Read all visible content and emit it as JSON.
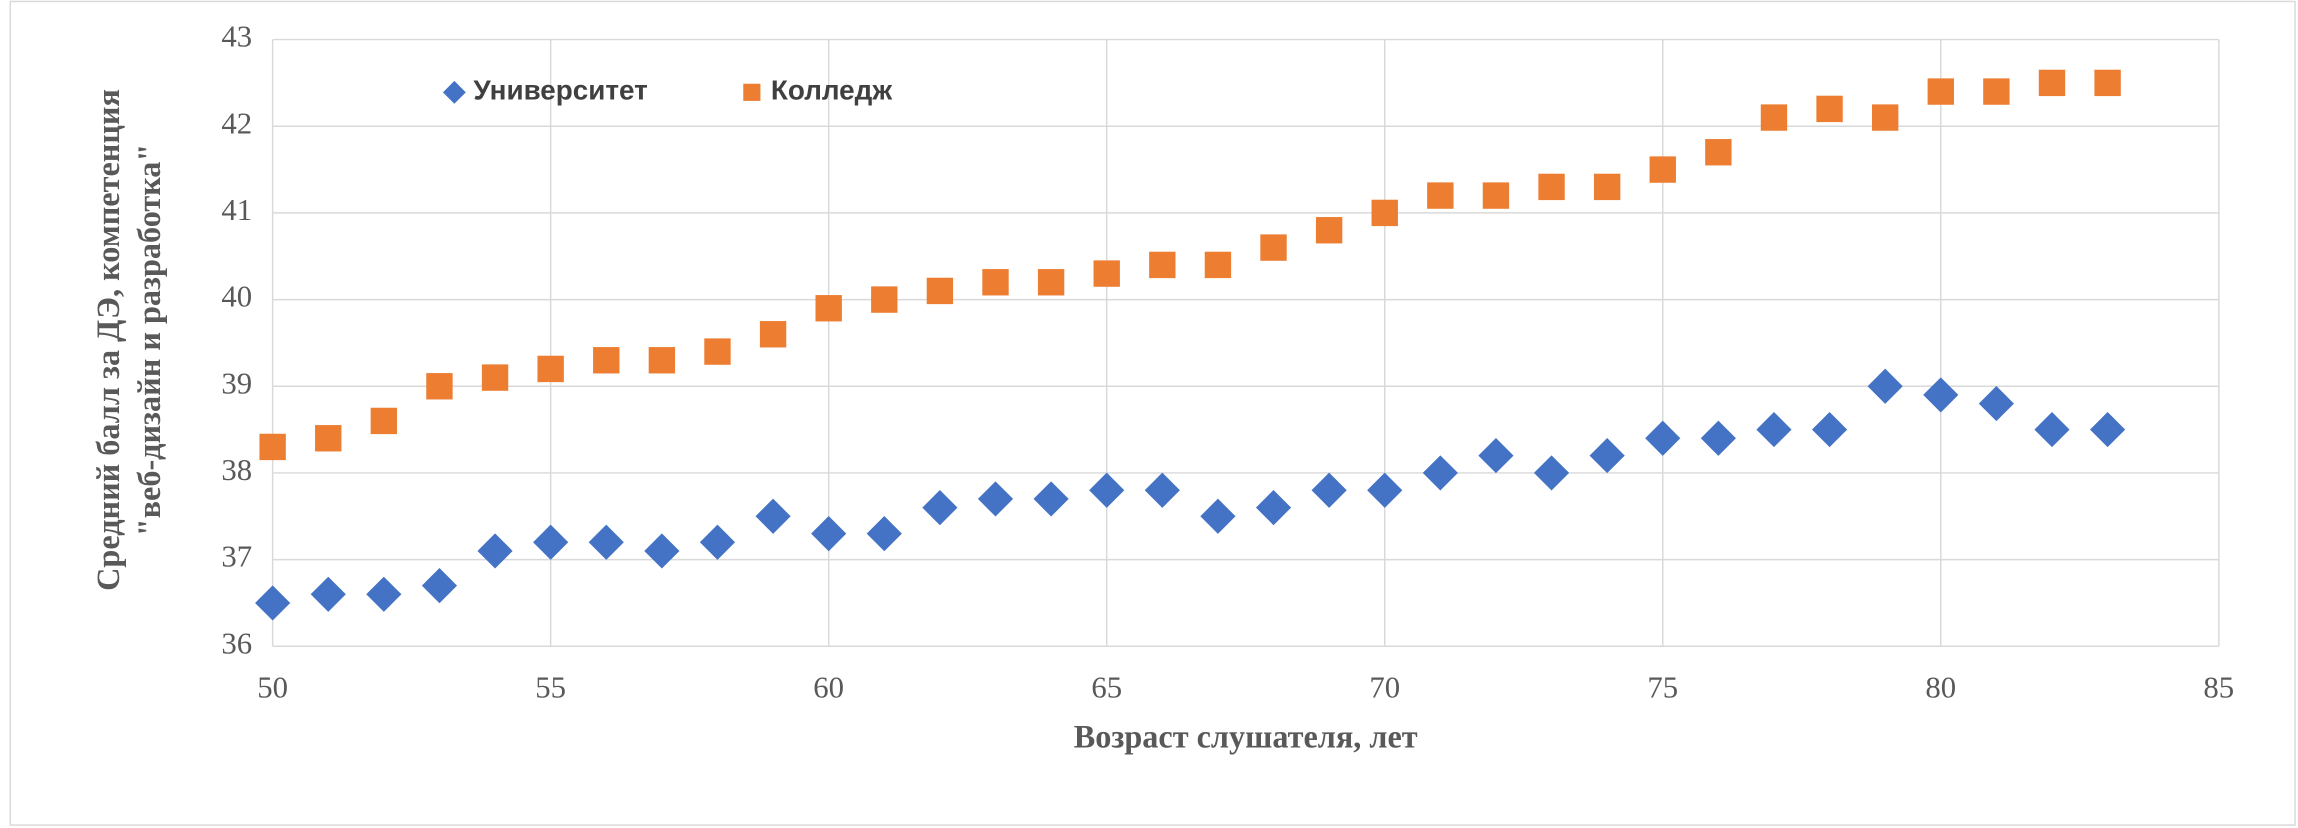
{
  "chart_data": {
    "type": "scatter",
    "x_label": "Возраст слушателя, лет",
    "y_label": [
      "Средний балл за ДЭ, компетенция",
      "\"веб-дизайн и разработка\""
    ],
    "x": [
      50,
      51,
      52,
      53,
      54,
      55,
      56,
      57,
      58,
      59,
      60,
      61,
      62,
      63,
      64,
      65,
      66,
      67,
      68,
      69,
      70,
      71,
      72,
      73,
      74,
      75,
      76,
      77,
      78,
      79,
      80,
      81,
      82,
      83
    ],
    "series": [
      {
        "name": "Университет",
        "color": "#4472c4",
        "marker": "diamond",
        "values": [
          36.5,
          36.6,
          36.6,
          36.7,
          37.1,
          37.2,
          37.2,
          37.1,
          37.2,
          37.5,
          37.3,
          37.3,
          37.6,
          37.7,
          37.7,
          37.8,
          37.8,
          37.5,
          37.6,
          37.8,
          37.8,
          38.0,
          38.2,
          38.0,
          38.2,
          38.4,
          38.4,
          38.5,
          38.5,
          39.0,
          38.9,
          38.8,
          38.5,
          38.5
        ]
      },
      {
        "name": "Колледж",
        "color": "#ed7d31",
        "marker": "square",
        "values": [
          38.3,
          38.4,
          38.6,
          39.0,
          39.1,
          39.2,
          39.3,
          39.3,
          39.4,
          39.6,
          39.9,
          40.0,
          40.1,
          40.2,
          40.2,
          40.3,
          40.4,
          40.4,
          40.6,
          40.8,
          41.0,
          41.2,
          41.2,
          41.3,
          41.3,
          41.5,
          41.7,
          42.1,
          42.2,
          42.1,
          42.4,
          42.4,
          42.5,
          42.5
        ]
      }
    ],
    "xlim": [
      50,
      85
    ],
    "xticks": [
      50,
      55,
      60,
      65,
      70,
      75,
      80,
      85
    ],
    "ylim": [
      36,
      43
    ],
    "yticks": [
      36,
      37,
      38,
      39,
      40,
      41,
      42,
      43
    ],
    "grid": true,
    "legend": "top-left"
  }
}
